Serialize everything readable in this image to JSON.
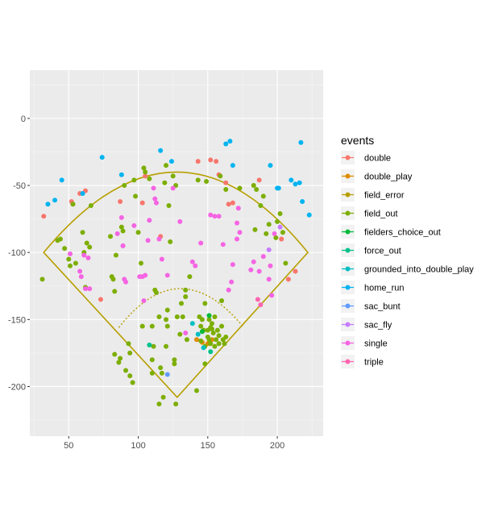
{
  "chart_data": {
    "type": "scatter",
    "title": "",
    "xlabel": "",
    "ylabel": "",
    "xlim": [
      22,
      233
    ],
    "ylim": [
      -237,
      36
    ],
    "xticks": [
      50,
      100,
      150,
      200
    ],
    "yticks": [
      0,
      -50,
      -100,
      -150,
      -200
    ],
    "grid": true,
    "legend_position": "right",
    "legend_title": "events",
    "colors": {
      "double": "#F8766D",
      "double_play": "#DE8C00",
      "field_error": "#B79F00",
      "field_out": "#7CAE00",
      "fielders_choice_out": "#00BA38",
      "force_out": "#00C08B",
      "grounded_into_double_play": "#00BFC4",
      "home_run": "#00B4F0",
      "sac_bunt": "#619CFF",
      "sac_fly": "#C77CFF",
      "single": "#F564E3",
      "triple": "#FF64B0"
    },
    "field_outline": {
      "home_plate": [
        128,
        -208
      ],
      "left_foul_pole": [
        32,
        -100
      ],
      "right_foul_pole": [
        222,
        -100
      ],
      "outfield_wall_peak": [
        128,
        -40
      ],
      "infield_arc_peak": [
        130,
        -127
      ],
      "infield_arc_left": [
        86,
        -156
      ],
      "infield_arc_right": [
        176,
        -156
      ]
    },
    "series": [
      {
        "name": "double",
        "points": [
          [
            32,
            -73
          ],
          [
            52,
            -62
          ],
          [
            53,
            -64
          ],
          [
            58,
            -56
          ],
          [
            62,
            -54
          ],
          [
            87,
            -62
          ],
          [
            105,
            -43
          ],
          [
            116,
            -88
          ],
          [
            143,
            -32
          ],
          [
            152,
            -31
          ],
          [
            156,
            -32
          ],
          [
            158,
            -42
          ],
          [
            163,
            -48
          ],
          [
            165,
            -64
          ],
          [
            168,
            -63
          ],
          [
            187,
            -46
          ],
          [
            203,
            -90
          ],
          [
            208,
            -120
          ],
          [
            213,
            -114
          ],
          [
            73,
            -135
          ],
          [
            103,
            -63
          ]
        ]
      },
      {
        "name": "double_play",
        "points": [
          [
            142,
            -165
          ],
          [
            146,
            -167
          ],
          [
            150,
            -168
          ],
          [
            153,
            -165
          ]
        ]
      },
      {
        "name": "field_error",
        "points": []
      },
      {
        "name": "field_out",
        "points": [
          [
            31,
            -120
          ],
          [
            42,
            -91
          ],
          [
            44,
            -90
          ],
          [
            47,
            -97
          ],
          [
            50,
            -105
          ],
          [
            51,
            -110
          ],
          [
            53,
            -64
          ],
          [
            55,
            -108
          ],
          [
            60,
            -85
          ],
          [
            61,
            -100
          ],
          [
            62,
            -126
          ],
          [
            63,
            -93
          ],
          [
            65,
            -96
          ],
          [
            66,
            -65
          ],
          [
            80,
            -88
          ],
          [
            81,
            -118
          ],
          [
            82,
            -120
          ],
          [
            83,
            -129
          ],
          [
            84,
            -102
          ],
          [
            83,
            -176
          ],
          [
            86,
            -182
          ],
          [
            87,
            -179
          ],
          [
            88,
            -81
          ],
          [
            89,
            -84
          ],
          [
            90,
            -50
          ],
          [
            91,
            -188
          ],
          [
            93,
            -168
          ],
          [
            94,
            -175
          ],
          [
            94,
            -192
          ],
          [
            96,
            -197
          ],
          [
            97,
            -46
          ],
          [
            98,
            -58
          ],
          [
            100,
            -85
          ],
          [
            102,
            -108
          ],
          [
            103,
            -155
          ],
          [
            104,
            -37
          ],
          [
            105,
            -40
          ],
          [
            108,
            -45
          ],
          [
            110,
            -190
          ],
          [
            110,
            -155
          ],
          [
            110,
            -180
          ],
          [
            111,
            -170
          ],
          [
            112,
            -128
          ],
          [
            113,
            -130
          ],
          [
            115,
            -148
          ],
          [
            116,
            -186
          ],
          [
            117,
            -190
          ],
          [
            119,
            -48
          ],
          [
            120,
            -35
          ],
          [
            120,
            -150
          ],
          [
            120,
            -170
          ],
          [
            121,
            -143
          ],
          [
            121,
            -155
          ],
          [
            122,
            -65
          ],
          [
            123,
            -92
          ],
          [
            125,
            -43
          ],
          [
            126,
            -180
          ],
          [
            126,
            -183
          ],
          [
            127,
            -50
          ],
          [
            130,
            -161
          ],
          [
            131,
            -138
          ],
          [
            132,
            -148
          ],
          [
            134,
            -128
          ],
          [
            134,
            -133
          ],
          [
            135,
            -165
          ],
          [
            137,
            -118
          ],
          [
            142,
            -203
          ],
          [
            143,
            -46
          ],
          [
            144,
            -148
          ],
          [
            145,
            -155
          ],
          [
            145,
            -166
          ],
          [
            146,
            -150
          ],
          [
            147,
            -158
          ],
          [
            148,
            -138
          ],
          [
            148,
            -170
          ],
          [
            148,
            -183
          ],
          [
            149,
            -47
          ],
          [
            150,
            -158
          ],
          [
            150,
            -163
          ],
          [
            151,
            -150
          ],
          [
            151,
            -165
          ],
          [
            152,
            -156
          ],
          [
            152,
            -168
          ],
          [
            153,
            -153
          ],
          [
            153,
            -157
          ],
          [
            154,
            -160
          ],
          [
            155,
            -148
          ],
          [
            155,
            -170
          ],
          [
            156,
            -165
          ],
          [
            157,
            -158
          ],
          [
            158,
            -162
          ],
          [
            158,
            -168
          ],
          [
            159,
            -43
          ],
          [
            160,
            -136
          ],
          [
            160,
            -155
          ],
          [
            161,
            -165
          ],
          [
            162,
            -168
          ],
          [
            163,
            -53
          ],
          [
            163,
            -163
          ],
          [
            173,
            -52
          ],
          [
            183,
            -50
          ],
          [
            184,
            -83
          ],
          [
            185,
            -53
          ],
          [
            188,
            -65
          ],
          [
            190,
            -58
          ],
          [
            192,
            -86
          ],
          [
            194,
            -79
          ],
          [
            199,
            -89
          ],
          [
            200,
            -77
          ],
          [
            202,
            -71
          ],
          [
            204,
            -85
          ],
          [
            206,
            -108
          ],
          [
            118,
            -208
          ],
          [
            127,
            -213
          ],
          [
            128,
            -148
          ],
          [
            115,
            -213
          ]
        ]
      },
      {
        "name": "fielders_choice_out",
        "points": [
          [
            146,
            -159
          ],
          [
            151,
            -147
          ]
        ]
      },
      {
        "name": "force_out",
        "points": [
          [
            108,
            -169
          ],
          [
            152,
            -174
          ]
        ]
      },
      {
        "name": "grounded_into_double_play",
        "points": [
          [
            139,
            -153
          ],
          [
            143,
            -161
          ],
          [
            147,
            -171
          ]
        ]
      },
      {
        "name": "home_run",
        "points": [
          [
            35,
            -64
          ],
          [
            40,
            -61
          ],
          [
            45,
            -46
          ],
          [
            60,
            -56
          ],
          [
            74,
            -29
          ],
          [
            88,
            -42
          ],
          [
            116,
            -24
          ],
          [
            124,
            -32
          ],
          [
            163,
            -19
          ],
          [
            166,
            -17
          ],
          [
            168,
            -35
          ],
          [
            195,
            -35
          ],
          [
            200,
            -52
          ],
          [
            201,
            -52
          ],
          [
            210,
            -46
          ],
          [
            213,
            -49
          ],
          [
            216,
            -48
          ],
          [
            217,
            -18
          ],
          [
            218,
            -62
          ],
          [
            223,
            -72
          ]
        ]
      },
      {
        "name": "sac_bunt",
        "points": [
          [
            121,
            -191
          ]
        ]
      },
      {
        "name": "sac_fly",
        "points": [
          [
            89,
            -95
          ],
          [
            194,
            -98
          ],
          [
            202,
            -81
          ]
        ]
      },
      {
        "name": "single",
        "points": [
          [
            51,
            -101
          ],
          [
            58,
            -114
          ],
          [
            59,
            -118
          ],
          [
            61,
            -102
          ],
          [
            62,
            -127
          ],
          [
            64,
            -104
          ],
          [
            65,
            -127
          ],
          [
            85,
            -86
          ],
          [
            89,
            -95
          ],
          [
            88,
            -74
          ],
          [
            90,
            -120
          ],
          [
            91,
            -122
          ],
          [
            97,
            -80
          ],
          [
            101,
            -118
          ],
          [
            103,
            -118
          ],
          [
            104,
            -136
          ],
          [
            105,
            -117
          ],
          [
            107,
            -91
          ],
          [
            108,
            -76
          ],
          [
            111,
            -52
          ],
          [
            112,
            -60
          ],
          [
            113,
            -63
          ],
          [
            115,
            -90
          ],
          [
            117,
            -105
          ],
          [
            121,
            -117
          ],
          [
            125,
            -52
          ],
          [
            130,
            -77
          ],
          [
            134,
            -160
          ],
          [
            139,
            -107
          ],
          [
            141,
            -110
          ],
          [
            145,
            -93
          ],
          [
            152,
            -72
          ],
          [
            155,
            -73
          ],
          [
            158,
            -73
          ],
          [
            161,
            -94
          ],
          [
            165,
            -128
          ],
          [
            167,
            -122
          ],
          [
            168,
            -109
          ],
          [
            171,
            -78
          ],
          [
            171,
            -90
          ],
          [
            172,
            -67
          ],
          [
            173,
            -85
          ],
          [
            181,
            -113
          ],
          [
            183,
            -107
          ],
          [
            187,
            -114
          ],
          [
            190,
            -103
          ],
          [
            194,
            -120
          ],
          [
            195,
            -110
          ],
          [
            196,
            -132
          ],
          [
            198,
            -86
          ]
        ]
      },
      {
        "name": "triple",
        "points": [
          [
            186,
            -135
          ],
          [
            188,
            -139
          ]
        ]
      }
    ]
  }
}
